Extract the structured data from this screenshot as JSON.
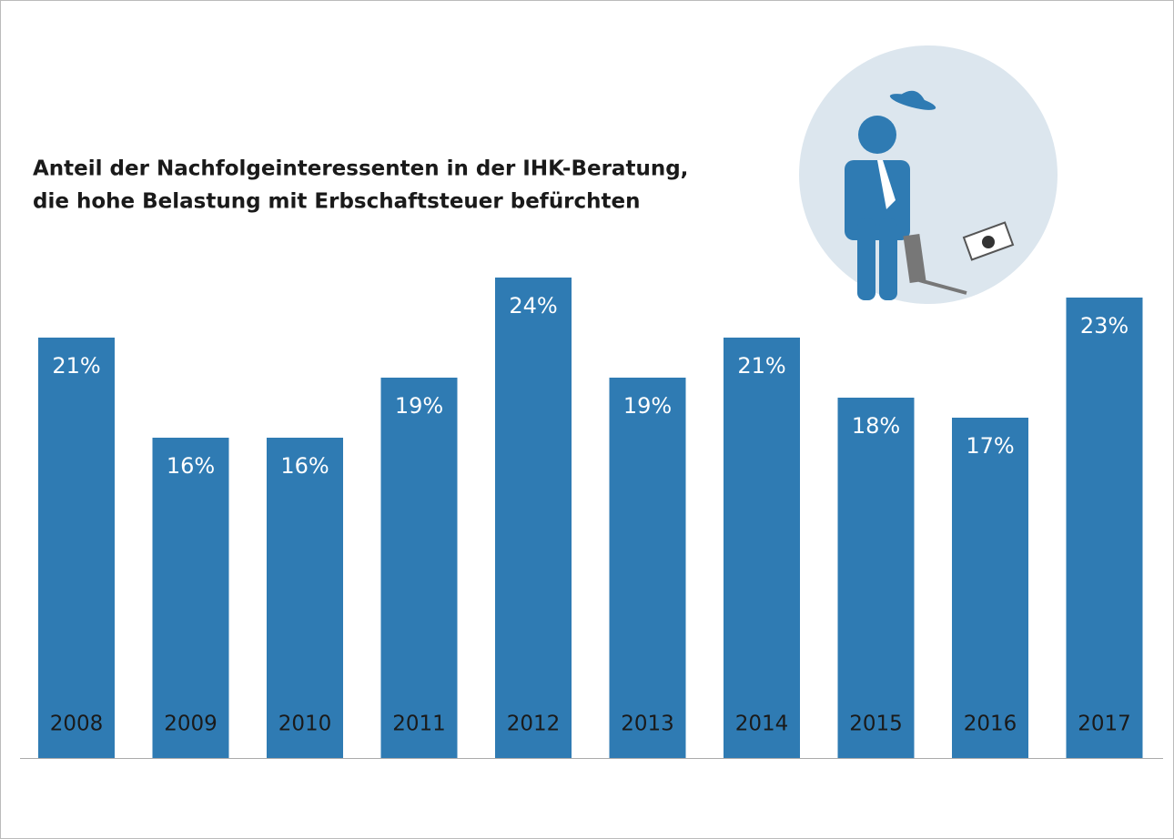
{
  "chart_data": {
    "type": "bar",
    "title": [
      "Anteil der Nachfolgeinteressenten in der IHK-Beratung,",
      "die hohe Belastung mit Erbschaftsteuer befürchten"
    ],
    "categories": [
      "2008",
      "2009",
      "2010",
      "2011",
      "2012",
      "2013",
      "2014",
      "2015",
      "2016",
      "2017"
    ],
    "values": [
      21,
      16,
      16,
      19,
      24,
      19,
      21,
      18,
      17,
      23
    ],
    "value_labels": [
      "21%",
      "16%",
      "16%",
      "19%",
      "24%",
      "19%",
      "21%",
      "18%",
      "17%",
      "23%"
    ],
    "color": "#2f7bb3"
  }
}
